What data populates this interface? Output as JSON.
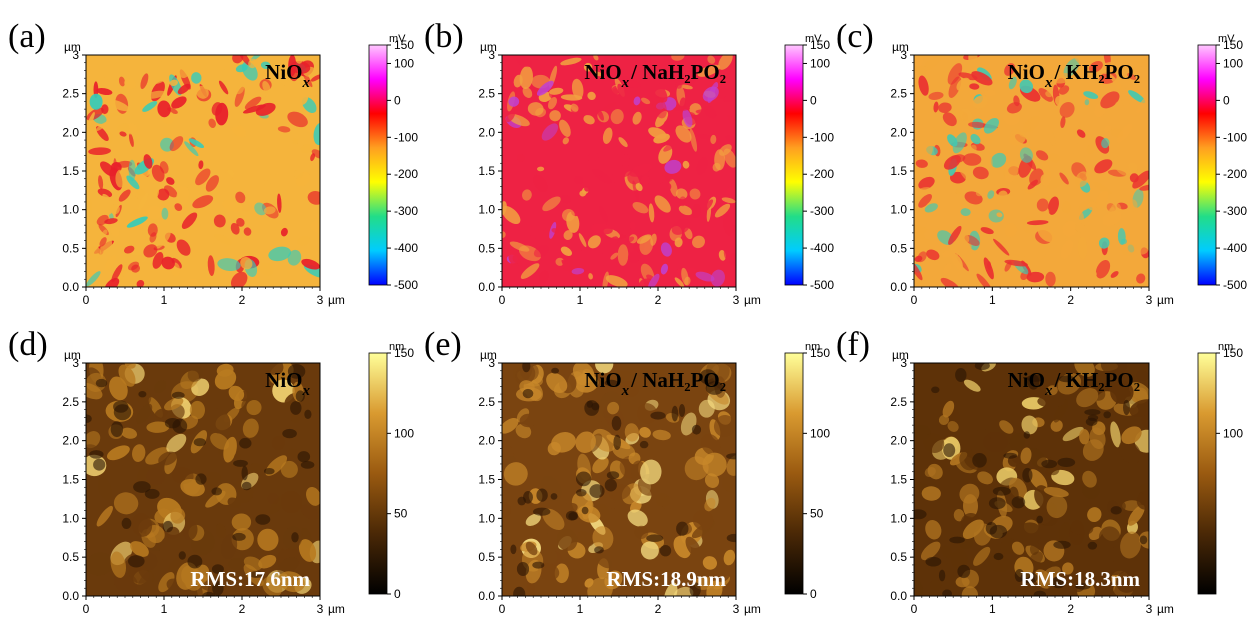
{
  "chart_data": [
    {
      "type": "heatmap",
      "panel": "(a)",
      "label_main": "NiO",
      "label_sub": "x",
      "label_rest": "",
      "unit_y": "µm",
      "unit_x": "µm",
      "xlim": [
        0,
        3
      ],
      "ylim": [
        0,
        3
      ],
      "x_ticks": [
        "0",
        "1",
        "2",
        "3"
      ],
      "y_ticks": [
        "0.0",
        "0.5",
        "1.0",
        "1.5",
        "2.0",
        "2.5",
        "3"
      ],
      "colorbar": {
        "unit": "mV",
        "range": [
          -500,
          150
        ],
        "ticks": [
          "150",
          "100",
          "0",
          "-100",
          "-200",
          "-300",
          "-400",
          "-500"
        ],
        "colors": [
          "#0000ff",
          "#00ccff",
          "#22dd88",
          "#ffff00",
          "#ffa020",
          "#ff0000",
          "#ff00ff",
          "#ffc8ff"
        ]
      },
      "colors": {
        "base": "#f5b43c",
        "blobs": "#e8202a",
        "spots": "#33ccbb"
      }
    },
    {
      "type": "heatmap",
      "panel": "(b)",
      "label_main": "NiO",
      "label_sub": "x",
      "label_rest": "/ NaH₂PO₂",
      "unit_y": "µm",
      "unit_x": "µm",
      "xlim": [
        0,
        3
      ],
      "ylim": [
        0,
        3
      ],
      "x_ticks": [
        "0",
        "1",
        "2",
        "3"
      ],
      "y_ticks": [
        "0.0",
        "0.5",
        "1.0",
        "1.5",
        "2.0",
        "2.5",
        "3"
      ],
      "colorbar": {
        "unit": "mV",
        "range": [
          -500,
          150
        ],
        "ticks": [
          "150",
          "100",
          "0",
          "-100",
          "-200",
          "-300",
          "-400",
          "-500"
        ],
        "colors": [
          "#0000ff",
          "#00ccff",
          "#22dd88",
          "#ffff00",
          "#ffa020",
          "#ff0000",
          "#ff00ff",
          "#ffc8ff"
        ]
      },
      "colors": {
        "base": "#ee2244",
        "blobs": "#f2a040",
        "spots": "#c040d0"
      }
    },
    {
      "type": "heatmap",
      "panel": "(c)",
      "label_main": "NiO",
      "label_sub": "x",
      "label_rest": "/ KH₂PO₂",
      "unit_y": "µm",
      "unit_x": "µm",
      "xlim": [
        0,
        3
      ],
      "ylim": [
        0,
        3
      ],
      "x_ticks": [
        "0",
        "1",
        "2",
        "3"
      ],
      "y_ticks": [
        "0.0",
        "0.5",
        "1.0",
        "1.5",
        "2.0",
        "2.5",
        "3"
      ],
      "colorbar": {
        "unit": "mV",
        "range": [
          -500,
          150
        ],
        "ticks": [
          "150",
          "100",
          "0",
          "-100",
          "-200",
          "-300",
          "-400",
          "-500"
        ],
        "colors": [
          "#0000ff",
          "#00ccff",
          "#22dd88",
          "#ffff00",
          "#ffa020",
          "#ff0000",
          "#ff00ff",
          "#ffc8ff"
        ]
      },
      "colors": {
        "base": "#f3a83a",
        "blobs": "#ea3030",
        "spots": "#44c8b0"
      }
    },
    {
      "type": "heatmap",
      "panel": "(d)",
      "label_main": "NiO",
      "label_sub": "x",
      "label_rest": "",
      "rms": "RMS:17.6nm",
      "unit_y": "µm",
      "unit_x": "µm",
      "xlim": [
        0,
        3
      ],
      "ylim": [
        0,
        3
      ],
      "x_ticks": [
        "0",
        "1",
        "2",
        "3"
      ],
      "y_ticks": [
        "0.0",
        "0.5",
        "1.0",
        "1.5",
        "2.0",
        "2.5",
        "3"
      ],
      "colorbar": {
        "unit": "nm",
        "range": [
          0,
          150
        ],
        "ticks": [
          "150",
          "100",
          "50",
          "0"
        ],
        "colors": [
          "#000000",
          "#4a2806",
          "#9a5a10",
          "#d99a30",
          "#ffff99"
        ]
      },
      "colors": {
        "base": "#6a3a0c",
        "blobs": "#b87a20",
        "spots": "#f0d070"
      }
    },
    {
      "type": "heatmap",
      "panel": "(e)",
      "label_main": "NiO",
      "label_sub": "x",
      "label_rest": "/ NaH₂PO₂",
      "rms": "RMS:18.9nm",
      "unit_y": "µm",
      "unit_x": "µm",
      "xlim": [
        0,
        3
      ],
      "ylim": [
        0,
        3
      ],
      "x_ticks": [
        "0",
        "1",
        "2",
        "3"
      ],
      "y_ticks": [
        "0.0",
        "0.5",
        "1.0",
        "1.5",
        "2.0",
        "2.5",
        "3"
      ],
      "colorbar": {
        "unit": "nm",
        "range": [
          0,
          150
        ],
        "ticks": [
          "150",
          "100",
          "50",
          "0"
        ],
        "colors": [
          "#000000",
          "#4a2806",
          "#9a5a10",
          "#d99a30",
          "#ffff99"
        ]
      },
      "colors": {
        "base": "#7a4410",
        "blobs": "#c8882a",
        "spots": "#f5dc80"
      }
    },
    {
      "type": "heatmap",
      "panel": "(f)",
      "label_main": "NiO",
      "label_sub": "x",
      "label_rest": "/ KH₂PO₂",
      "rms": "RMS:18.3nm",
      "unit_y": "µm",
      "unit_x": "µm",
      "xlim": [
        0,
        3
      ],
      "ylim": [
        0,
        3
      ],
      "x_ticks": [
        "0",
        "1",
        "2",
        "3"
      ],
      "y_ticks": [
        "0.0",
        "0.5",
        "1.0",
        "1.5",
        "2.0",
        "2.5",
        "3"
      ],
      "colorbar": {
        "unit": "nm",
        "range": [
          0,
          150
        ],
        "ticks": [
          "150",
          "100"
        ],
        "colors": [
          "#000000",
          "#4a2806",
          "#9a5a10",
          "#d99a30",
          "#ffff99"
        ]
      },
      "colors": {
        "base": "#5e3208",
        "blobs": "#b07420",
        "spots": "#eccc68"
      }
    }
  ]
}
